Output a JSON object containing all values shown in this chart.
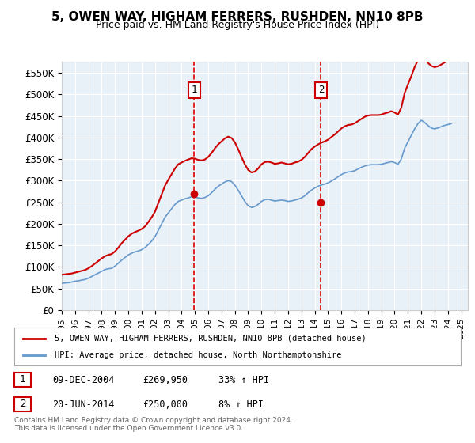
{
  "title": "5, OWEN WAY, HIGHAM FERRERS, RUSHDEN, NN10 8PB",
  "subtitle": "Price paid vs. HM Land Registry's House Price Index (HPI)",
  "ylabel_ticks": [
    "£0",
    "£50K",
    "£100K",
    "£150K",
    "£200K",
    "£250K",
    "£300K",
    "£350K",
    "£400K",
    "£450K",
    "£500K",
    "£550K"
  ],
  "ytick_values": [
    0,
    50000,
    100000,
    150000,
    200000,
    250000,
    300000,
    350000,
    400000,
    450000,
    500000,
    550000
  ],
  "ylim": [
    0,
    575000
  ],
  "xlim_start": 1995.0,
  "xlim_end": 2025.5,
  "background_color": "#e8f0f8",
  "plot_bg_color": "#e8f0f8",
  "grid_color": "#ffffff",
  "red_line_color": "#cc0000",
  "blue_line_color": "#6699cc",
  "vline_color": "#dd0000",
  "marker1_x": 2004.94,
  "marker1_y": 269950,
  "marker2_x": 2014.47,
  "marker2_y": 250000,
  "legend_label1": "5, OWEN WAY, HIGHAM FERRERS, RUSHDEN, NN10 8PB (detached house)",
  "legend_label2": "HPI: Average price, detached house, North Northamptonshire",
  "annotation1_num": "1",
  "annotation2_num": "2",
  "table_row1": [
    "1",
    "09-DEC-2004",
    "£269,950",
    "33% ↑ HPI"
  ],
  "table_row2": [
    "2",
    "20-JUN-2014",
    "£250,000",
    "8% ↑ HPI"
  ],
  "footer": "Contains HM Land Registry data © Crown copyright and database right 2024.\nThis data is licensed under the Open Government Licence v3.0.",
  "hpi_data": {
    "years": [
      1995.0,
      1995.25,
      1995.5,
      1995.75,
      1996.0,
      1996.25,
      1996.5,
      1996.75,
      1997.0,
      1997.25,
      1997.5,
      1997.75,
      1998.0,
      1998.25,
      1998.5,
      1998.75,
      1999.0,
      1999.25,
      1999.5,
      1999.75,
      2000.0,
      2000.25,
      2000.5,
      2000.75,
      2001.0,
      2001.25,
      2001.5,
      2001.75,
      2002.0,
      2002.25,
      2002.5,
      2002.75,
      2003.0,
      2003.25,
      2003.5,
      2003.75,
      2004.0,
      2004.25,
      2004.5,
      2004.75,
      2005.0,
      2005.25,
      2005.5,
      2005.75,
      2006.0,
      2006.25,
      2006.5,
      2006.75,
      2007.0,
      2007.25,
      2007.5,
      2007.75,
      2008.0,
      2008.25,
      2008.5,
      2008.75,
      2009.0,
      2009.25,
      2009.5,
      2009.75,
      2010.0,
      2010.25,
      2010.5,
      2010.75,
      2011.0,
      2011.25,
      2011.5,
      2011.75,
      2012.0,
      2012.25,
      2012.5,
      2012.75,
      2013.0,
      2013.25,
      2013.5,
      2013.75,
      2014.0,
      2014.25,
      2014.5,
      2014.75,
      2015.0,
      2015.25,
      2015.5,
      2015.75,
      2016.0,
      2016.25,
      2016.5,
      2016.75,
      2017.0,
      2017.25,
      2017.5,
      2017.75,
      2018.0,
      2018.25,
      2018.5,
      2018.75,
      2019.0,
      2019.25,
      2019.5,
      2019.75,
      2020.0,
      2020.25,
      2020.5,
      2020.75,
      2021.0,
      2021.25,
      2021.5,
      2021.75,
      2022.0,
      2022.25,
      2022.5,
      2022.75,
      2023.0,
      2023.25,
      2023.5,
      2023.75,
      2024.0,
      2024.25
    ],
    "values": [
      62000,
      63000,
      63500,
      65000,
      67000,
      68000,
      69500,
      71000,
      74000,
      78000,
      82000,
      86000,
      90000,
      94000,
      96000,
      97000,
      102000,
      109000,
      116000,
      122000,
      128000,
      132000,
      135000,
      137000,
      140000,
      145000,
      152000,
      160000,
      170000,
      185000,
      200000,
      215000,
      225000,
      235000,
      245000,
      252000,
      255000,
      258000,
      260000,
      263000,
      262000,
      260000,
      259000,
      261000,
      265000,
      272000,
      280000,
      287000,
      292000,
      297000,
      300000,
      298000,
      290000,
      278000,
      265000,
      252000,
      242000,
      238000,
      240000,
      245000,
      252000,
      256000,
      257000,
      255000,
      253000,
      254000,
      255000,
      254000,
      252000,
      253000,
      255000,
      257000,
      260000,
      265000,
      272000,
      278000,
      283000,
      287000,
      290000,
      292000,
      295000,
      299000,
      304000,
      309000,
      314000,
      318000,
      320000,
      321000,
      323000,
      327000,
      331000,
      334000,
      336000,
      337000,
      337000,
      337000,
      338000,
      340000,
      342000,
      344000,
      342000,
      338000,
      350000,
      375000,
      390000,
      405000,
      420000,
      432000,
      440000,
      435000,
      428000,
      422000,
      420000,
      422000,
      425000,
      428000,
      430000,
      432000
    ]
  },
  "red_data": {
    "years": [
      1995.0,
      1995.25,
      1995.5,
      1995.75,
      1996.0,
      1996.25,
      1996.5,
      1996.75,
      1997.0,
      1997.25,
      1997.5,
      1997.75,
      1998.0,
      1998.25,
      1998.5,
      1998.75,
      1999.0,
      1999.25,
      1999.5,
      1999.75,
      2000.0,
      2000.25,
      2000.5,
      2000.75,
      2001.0,
      2001.25,
      2001.5,
      2001.75,
      2002.0,
      2002.25,
      2002.5,
      2002.75,
      2003.0,
      2003.25,
      2003.5,
      2003.75,
      2004.0,
      2004.25,
      2004.5,
      2004.75,
      2005.0,
      2005.25,
      2005.5,
      2005.75,
      2006.0,
      2006.25,
      2006.5,
      2006.75,
      2007.0,
      2007.25,
      2007.5,
      2007.75,
      2008.0,
      2008.25,
      2008.5,
      2008.75,
      2009.0,
      2009.25,
      2009.5,
      2009.75,
      2010.0,
      2010.25,
      2010.5,
      2010.75,
      2011.0,
      2011.25,
      2011.5,
      2011.75,
      2012.0,
      2012.25,
      2012.5,
      2012.75,
      2013.0,
      2013.25,
      2013.5,
      2013.75,
      2014.0,
      2014.25,
      2014.5,
      2014.75,
      2015.0,
      2015.25,
      2015.5,
      2015.75,
      2016.0,
      2016.25,
      2016.5,
      2016.75,
      2017.0,
      2017.25,
      2017.5,
      2017.75,
      2018.0,
      2018.25,
      2018.5,
      2018.75,
      2019.0,
      2019.25,
      2019.5,
      2019.75,
      2020.0,
      2020.25,
      2020.5,
      2020.75,
      2021.0,
      2021.25,
      2021.5,
      2021.75,
      2022.0,
      2022.25,
      2022.5,
      2022.75,
      2023.0,
      2023.25,
      2023.5,
      2023.75,
      2024.0,
      2024.25
    ],
    "values": [
      82000,
      83000,
      84000,
      85000,
      87000,
      89000,
      91000,
      93000,
      97000,
      102000,
      108000,
      114000,
      120000,
      125000,
      128000,
      130000,
      136000,
      145000,
      155000,
      163000,
      171000,
      177000,
      181000,
      184000,
      188000,
      194000,
      204000,
      215000,
      228000,
      248000,
      268000,
      288000,
      302000,
      315000,
      328000,
      338000,
      342000,
      346000,
      349000,
      352000,
      351000,
      348000,
      347000,
      349000,
      355000,
      364000,
      375000,
      384000,
      391000,
      398000,
      402000,
      399000,
      389000,
      373000,
      355000,
      338000,
      325000,
      319000,
      321000,
      328000,
      338000,
      343000,
      344000,
      342000,
      339000,
      340000,
      342000,
      340000,
      338000,
      339000,
      342000,
      344000,
      348000,
      355000,
      364000,
      373000,
      379000,
      384000,
      388000,
      391000,
      395000,
      401000,
      407000,
      414000,
      421000,
      426000,
      429000,
      430000,
      433000,
      438000,
      443000,
      448000,
      451000,
      452000,
      452000,
      452000,
      453000,
      456000,
      458000,
      461000,
      458000,
      453000,
      469000,
      503000,
      523000,
      542000,
      563000,
      579000,
      590000,
      583000,
      573000,
      566000,
      563000,
      565000,
      569000,
      574000,
      577000,
      580000
    ]
  }
}
